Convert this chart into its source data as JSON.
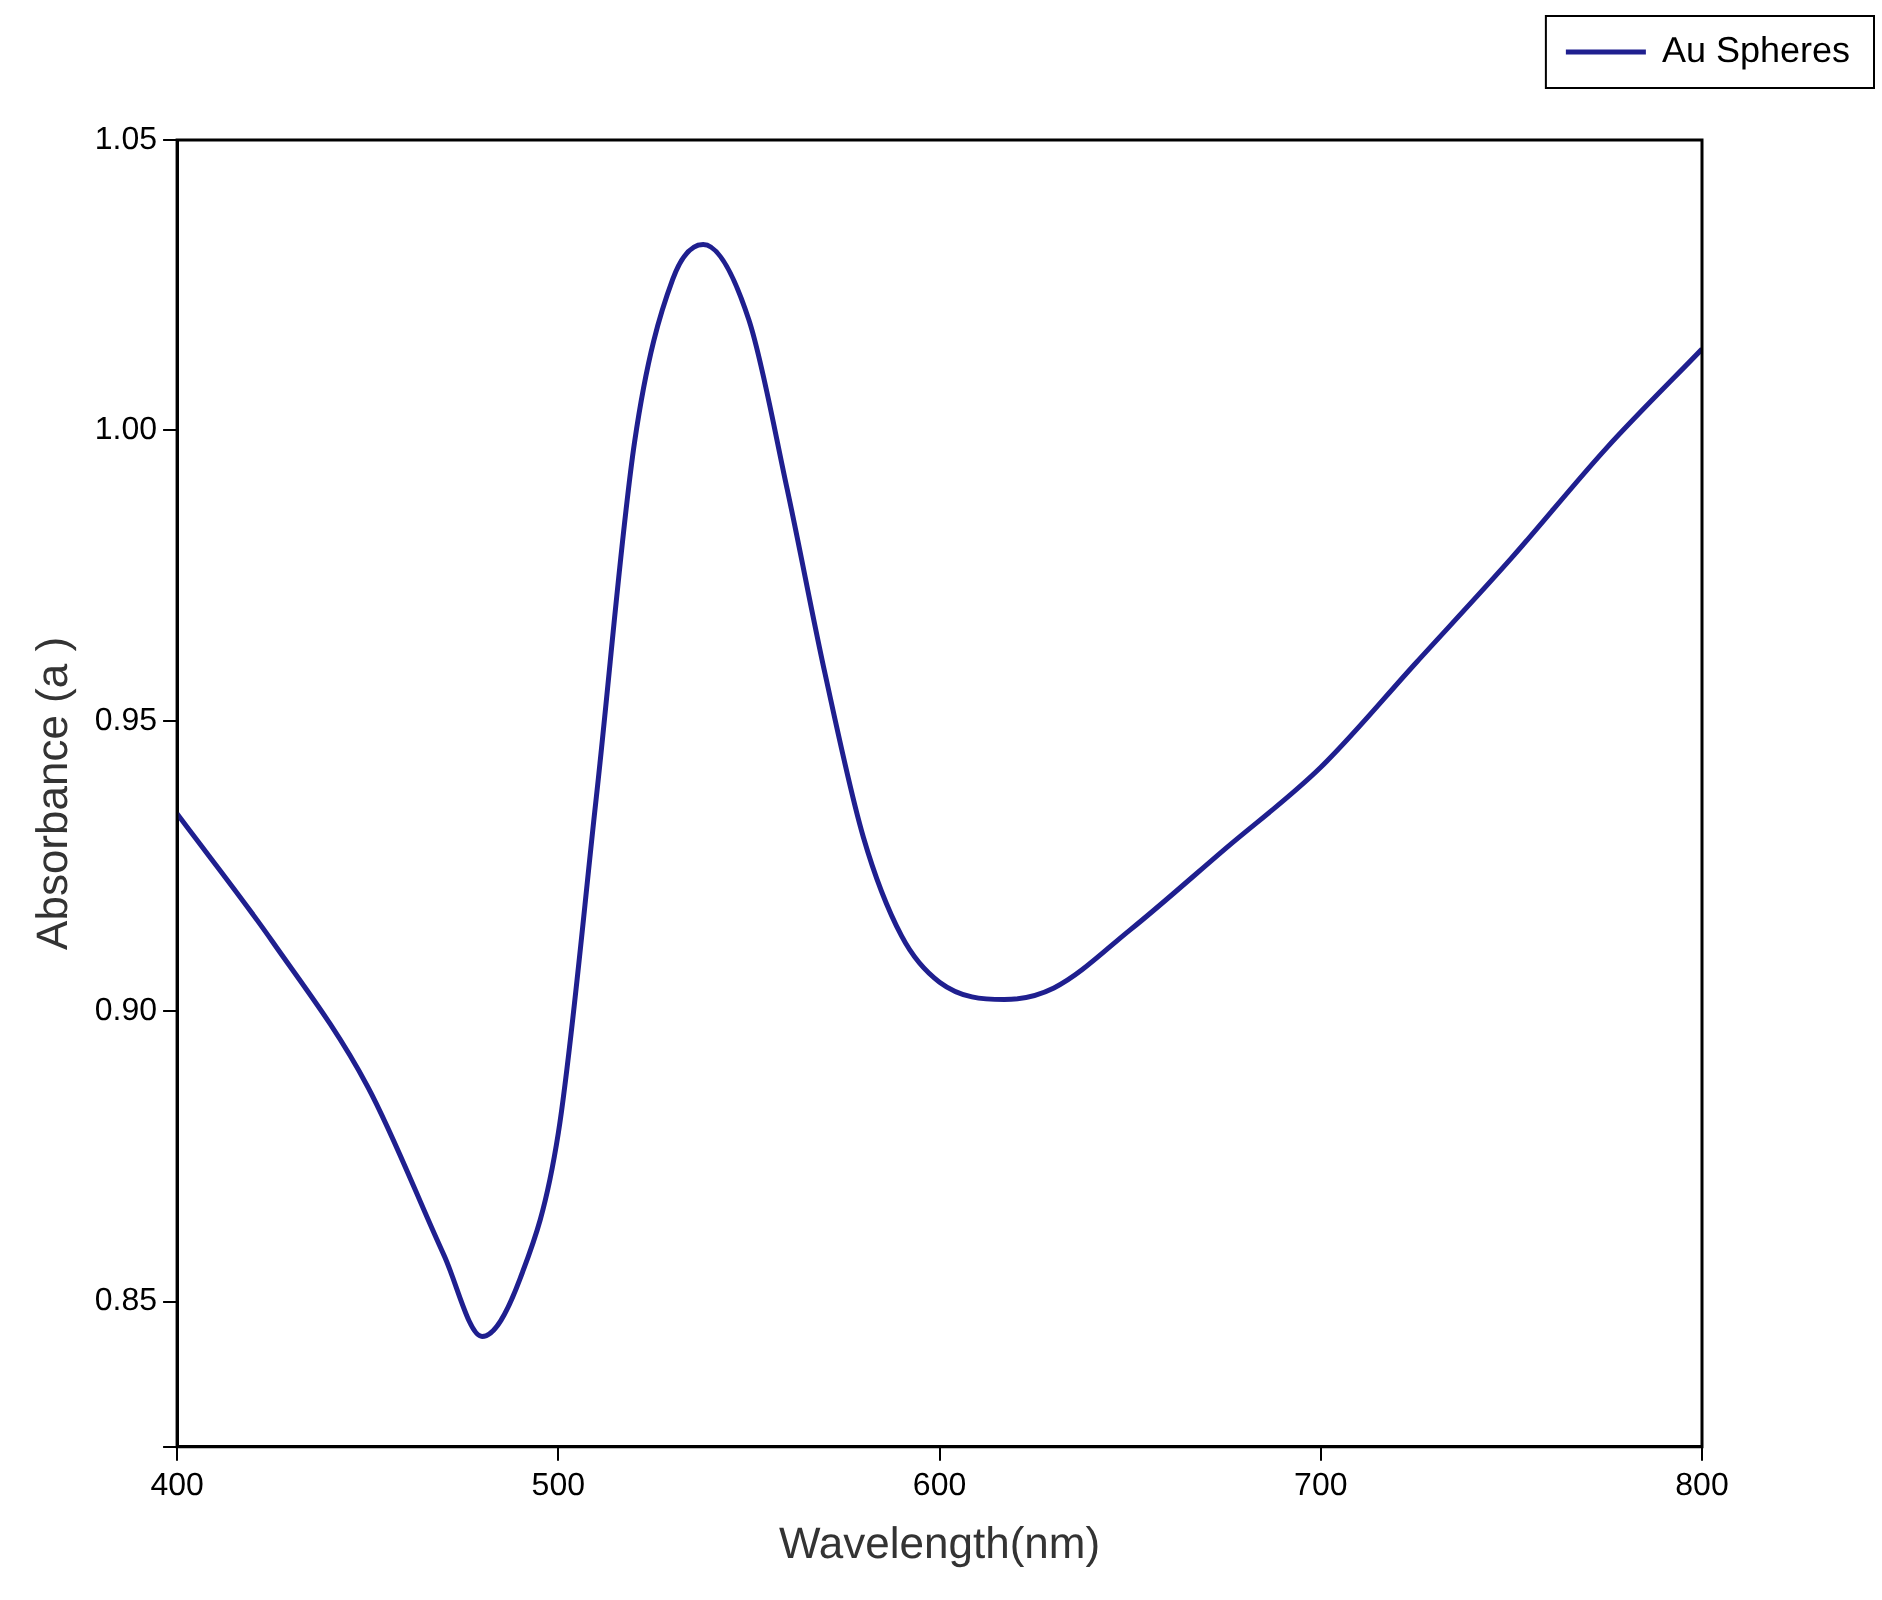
{
  "chart_data": {
    "type": "line",
    "xlabel": "Wavelength(nm)",
    "ylabel": "Absorbance (a )",
    "xlim": [
      400,
      800
    ],
    "xticks": [
      400,
      500,
      600,
      700,
      800
    ],
    "ylim": [
      0.825,
      1.05
    ],
    "yticks": [
      {
        "value": 0.825,
        "label": null
      },
      0.85,
      {
        "value": 0.9,
        "label": "0.90"
      },
      0.95,
      {
        "value": 1.0,
        "label": "1.00"
      },
      1.05
    ],
    "grid": false,
    "legend": "top right",
    "marker": "none",
    "line_style": "solid",
    "series": [
      {
        "name": "Au Spheres",
        "color": "#1f1f8f",
        "x": [
          400,
          425,
          450,
          470,
          480,
          490,
          500,
          510,
          520,
          530,
          538,
          550,
          560,
          570,
          580,
          590,
          600,
          617,
          630,
          650,
          675,
          700,
          725,
          750,
          775,
          800
        ],
        "values": [
          0.934,
          0.912,
          0.887,
          0.858,
          0.844,
          0.854,
          0.879,
          0.937,
          0.998,
          1.026,
          1.032,
          1.019,
          0.99,
          0.958,
          0.93,
          0.913,
          0.905,
          0.902,
          0.904,
          0.914,
          0.928,
          0.942,
          0.96,
          0.978,
          0.997,
          1.014
        ]
      }
    ]
  }
}
